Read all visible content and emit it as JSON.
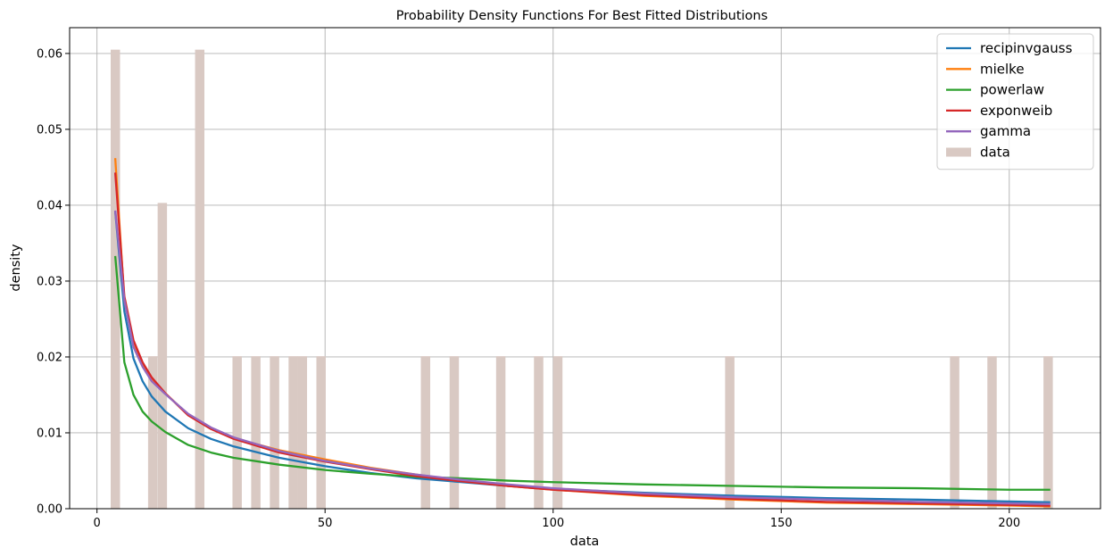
{
  "chart_data": {
    "type": "line",
    "title": "Probability Density Functions For Best Fitted Distributions",
    "xlabel": "data",
    "ylabel": "density",
    "xlim": [
      -6,
      220
    ],
    "ylim": [
      0,
      0.0634
    ],
    "xticks": [
      0,
      50,
      100,
      150,
      200
    ],
    "xtick_labels": [
      "0",
      "50",
      "100",
      "150",
      "200"
    ],
    "yticks": [
      0.0,
      0.01,
      0.02,
      0.03,
      0.04,
      0.05,
      0.06
    ],
    "ytick_labels": [
      "0.00",
      "0.01",
      "0.02",
      "0.03",
      "0.04",
      "0.05",
      "0.06"
    ],
    "grid": true,
    "legend_position": "top-right",
    "histogram": {
      "name": "data",
      "color": "#d9c9c3",
      "bin_width": 2.05,
      "bins": [
        {
          "x": 3.0,
          "density": 0.0605
        },
        {
          "x": 11.2,
          "density": 0.0201
        },
        {
          "x": 13.3,
          "density": 0.0403
        },
        {
          "x": 21.5,
          "density": 0.0605
        },
        {
          "x": 29.7,
          "density": 0.0201
        },
        {
          "x": 33.8,
          "density": 0.0201
        },
        {
          "x": 37.9,
          "density": 0.0201
        },
        {
          "x": 42.0,
          "density": 0.0201
        },
        {
          "x": 44.0,
          "density": 0.0201
        },
        {
          "x": 48.1,
          "density": 0.0201
        },
        {
          "x": 71.0,
          "density": 0.0201
        },
        {
          "x": 77.3,
          "density": 0.0201
        },
        {
          "x": 87.5,
          "density": 0.0201
        },
        {
          "x": 95.8,
          "density": 0.0201
        },
        {
          "x": 100.0,
          "density": 0.0201
        },
        {
          "x": 137.7,
          "density": 0.0201
        },
        {
          "x": 187.0,
          "density": 0.0201
        },
        {
          "x": 195.2,
          "density": 0.0201
        },
        {
          "x": 207.5,
          "density": 0.0201
        }
      ]
    },
    "series": [
      {
        "name": "recipinvgauss",
        "color": "#1f77b4",
        "x": [
          4,
          6,
          8,
          10,
          12,
          15,
          20,
          25,
          30,
          40,
          50,
          60,
          70,
          80,
          90,
          100,
          120,
          140,
          160,
          180,
          200,
          209
        ],
        "y": [
          0.0392,
          0.026,
          0.0198,
          0.0168,
          0.0148,
          0.0128,
          0.0106,
          0.0092,
          0.0082,
          0.0067,
          0.0056,
          0.0047,
          0.004,
          0.0035,
          0.003,
          0.0026,
          0.0021,
          0.0017,
          0.0014,
          0.0012,
          0.00095,
          0.00085
        ]
      },
      {
        "name": "mielke",
        "color": "#ff7f0e",
        "x": [
          4,
          6,
          8,
          10,
          12,
          15,
          20,
          25,
          30,
          40,
          50,
          60,
          70,
          80,
          90,
          100,
          120,
          140,
          160,
          180,
          200,
          209
        ],
        "y": [
          0.0462,
          0.0275,
          0.0215,
          0.019,
          0.0172,
          0.0152,
          0.0124,
          0.0106,
          0.0093,
          0.0077,
          0.0065,
          0.0054,
          0.0045,
          0.0037,
          0.003,
          0.0025,
          0.0017,
          0.0012,
          0.0008,
          0.0006,
          0.00042,
          0.0003
        ]
      },
      {
        "name": "powerlaw",
        "color": "#2ca02c",
        "x": [
          4,
          6,
          8,
          10,
          12,
          15,
          20,
          25,
          30,
          40,
          50,
          60,
          70,
          80,
          90,
          100,
          120,
          140,
          160,
          180,
          200,
          209
        ],
        "y": [
          0.0333,
          0.0193,
          0.015,
          0.0128,
          0.0115,
          0.0101,
          0.0084,
          0.0074,
          0.0067,
          0.0058,
          0.0051,
          0.0046,
          0.0042,
          0.004,
          0.0037,
          0.0035,
          0.0032,
          0.003,
          0.0028,
          0.0027,
          0.0025,
          0.0025
        ]
      },
      {
        "name": "exponweib",
        "color": "#d62728",
        "x": [
          4,
          6,
          8,
          10,
          12,
          15,
          20,
          25,
          30,
          40,
          50,
          60,
          70,
          80,
          90,
          100,
          120,
          140,
          160,
          180,
          200,
          209
        ],
        "y": [
          0.0443,
          0.028,
          0.0222,
          0.0193,
          0.0173,
          0.0152,
          0.0123,
          0.0105,
          0.0092,
          0.0074,
          0.0062,
          0.0052,
          0.0043,
          0.0036,
          0.003,
          0.0025,
          0.0018,
          0.0013,
          0.0009,
          0.0007,
          0.0005,
          0.0004
        ]
      },
      {
        "name": "gamma",
        "color": "#9467bd",
        "x": [
          4,
          6,
          8,
          10,
          12,
          15,
          20,
          25,
          30,
          40,
          50,
          60,
          70,
          80,
          90,
          100,
          120,
          140,
          160,
          180,
          200,
          209
        ],
        "y": [
          0.0393,
          0.0275,
          0.0213,
          0.0187,
          0.0168,
          0.0151,
          0.0125,
          0.0107,
          0.0094,
          0.0076,
          0.0063,
          0.0053,
          0.0045,
          0.0038,
          0.0032,
          0.0027,
          0.002,
          0.0015,
          0.0012,
          0.0009,
          0.0007,
          0.0006
        ]
      }
    ]
  }
}
